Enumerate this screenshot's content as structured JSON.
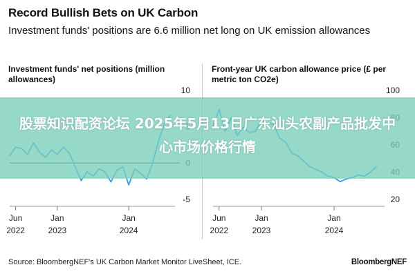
{
  "header": {
    "title": "Record Bullish Bets on UK Carbon",
    "subtitle": "Investment funds' positions are 6.6 million net long on UK emission allowances"
  },
  "footer": {
    "source": "Source: BloombergNEF's UK Carbon Market Monitor LiveSheet, ICE.",
    "brand": "BloombergNEF"
  },
  "overlay": {
    "text": "股票知识配资论坛 2025年5月13日广东汕头农副产品批发中心市场价格行情"
  },
  "colors": {
    "series": "#2a9df4",
    "zero_line": "#333333",
    "banner": "#79ceba"
  },
  "chart_data": [
    {
      "type": "line",
      "title": "Investment funds' net positions (million allowances)",
      "xlabel": "",
      "ylabel": "",
      "x_ticks": [
        {
          "x": "2022-06",
          "label_1": "Jun",
          "label_2": "2022"
        },
        {
          "x": "2023-01",
          "label_1": "Jan",
          "label_2": "2023"
        },
        {
          "x": "2024-01",
          "label_1": "Jan",
          "label_2": "2024"
        }
      ],
      "y_ticks": [
        10,
        5,
        0,
        -5
      ],
      "ylim": [
        -5,
        10
      ],
      "xlim": [
        "2022-05",
        "2024-09"
      ],
      "zero_line": true,
      "series": [
        {
          "x": [
            "2022-05",
            "2022-06",
            "2022-07",
            "2022-08",
            "2022-09",
            "2022-10",
            "2022-11",
            "2022-12",
            "2023-01",
            "2023-02",
            "2023-03",
            "2023-04",
            "2023-05",
            "2023-06",
            "2023-07",
            "2023-08",
            "2023-09",
            "2023-10",
            "2023-11",
            "2023-12",
            "2024-01",
            "2024-02",
            "2024-03",
            "2024-04",
            "2024-05",
            "2024-06",
            "2024-07",
            "2024-08"
          ],
          "values": [
            1.0,
            2.2,
            2.0,
            1.2,
            2.8,
            1.5,
            0.8,
            1.8,
            1.2,
            2.2,
            1.4,
            -0.5,
            -2.4,
            -1.2,
            -1.8,
            -0.8,
            -1.2,
            -2.6,
            -1.0,
            -0.5,
            -3.0,
            -0.8,
            -1.4,
            -2.2,
            0.0,
            3.0,
            5.5,
            6.6
          ]
        }
      ]
    },
    {
      "type": "line",
      "title": "Front-year UK carbon allowance price (£ per metric ton CO2e)",
      "xlabel": "",
      "ylabel": "",
      "x_ticks": [
        {
          "x": "2022-06",
          "label_1": "Jun",
          "label_2": "2022"
        },
        {
          "x": "2023-01",
          "label_1": "Jan",
          "label_2": "2023"
        },
        {
          "x": "2024-01",
          "label_1": "Jan",
          "label_2": "2024"
        }
      ],
      "y_ticks": [
        100,
        80,
        60,
        40,
        20
      ],
      "ylim": [
        20,
        100
      ],
      "xlim": [
        "2022-05",
        "2024-09"
      ],
      "zero_line": false,
      "series": [
        {
          "x": [
            "2022-05",
            "2022-06",
            "2022-07",
            "2022-08",
            "2022-09",
            "2022-10",
            "2022-11",
            "2022-12",
            "2023-01",
            "2023-02",
            "2023-03",
            "2023-04",
            "2023-05",
            "2023-06",
            "2023-07",
            "2023-08",
            "2023-09",
            "2023-10",
            "2023-11",
            "2023-12",
            "2024-01",
            "2024-02",
            "2024-03",
            "2024-04",
            "2024-05",
            "2024-06",
            "2024-07",
            "2024-08"
          ],
          "values": [
            74,
            86,
            70,
            80,
            67,
            73,
            69,
            70,
            78,
            76,
            75,
            65,
            62,
            54,
            52,
            48,
            44,
            42,
            40,
            37,
            36,
            33,
            35,
            36,
            38,
            37,
            40,
            44
          ]
        }
      ]
    }
  ]
}
